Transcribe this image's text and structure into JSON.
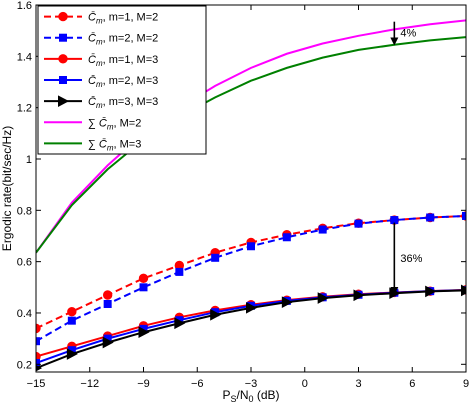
{
  "chart_data": {
    "type": "line",
    "xlabel": "P_S/N_0 (dB)",
    "xlabel_main": "P",
    "xlabel_sub": "S",
    "xlabel_rest": "/N",
    "xlabel_sub2": "0",
    "xlabel_unit": " (dB)",
    "ylabel": "Ergodic rate(bit/sec/Hz)",
    "xlim": [
      -15,
      9
    ],
    "ylim": [
      0.17,
      1.6
    ],
    "xticks": [
      -15,
      -12,
      -9,
      -6,
      -3,
      0,
      3,
      6,
      9
    ],
    "yticks": [
      0.2,
      0.4,
      0.6,
      0.8,
      1,
      1.2,
      1.4,
      1.6
    ],
    "ytick_labels": [
      "0.2",
      "0.4",
      "0.6",
      "0.8",
      "1",
      "1.2",
      "1.4",
      "1.6"
    ],
    "grid": false,
    "legend_position": "top-left",
    "x": [
      -15,
      -13,
      -11,
      -9,
      -7,
      -5,
      -3,
      -1,
      1,
      3,
      5,
      7,
      9
    ],
    "series": [
      {
        "name": "C̄m, m=1, M=2",
        "legend_sym": "C̄",
        "legend_sub": "m",
        "legend_rest": ", m=1, M=2",
        "color": "#ff0000",
        "dash": "dashed",
        "marker": "circle",
        "values": [
          0.34,
          0.405,
          0.47,
          0.535,
          0.585,
          0.635,
          0.675,
          0.705,
          0.73,
          0.75,
          0.762,
          0.772,
          0.778
        ]
      },
      {
        "name": "C̄m, m=2, M=2",
        "legend_sym": "C̄",
        "legend_sub": "m",
        "legend_rest": ", m=2, M=2",
        "color": "#0000ff",
        "dash": "dashed",
        "marker": "square",
        "values": [
          0.29,
          0.37,
          0.435,
          0.5,
          0.56,
          0.615,
          0.66,
          0.695,
          0.725,
          0.748,
          0.762,
          0.772,
          0.778
        ]
      },
      {
        "name": "C̄m, m=1, M=3",
        "legend_sym": "C̄",
        "legend_sub": "m",
        "legend_rest": ", m=1, M=3",
        "color": "#ff0000",
        "dash": "solid",
        "marker": "circle",
        "values": [
          0.23,
          0.27,
          0.31,
          0.35,
          0.383,
          0.41,
          0.432,
          0.45,
          0.463,
          0.473,
          0.48,
          0.485,
          0.49
        ]
      },
      {
        "name": "C̄m, m=2, M=3",
        "legend_sym": "C̄",
        "legend_sub": "m",
        "legend_rest": ", m=2, M=3",
        "color": "#0000ff",
        "dash": "solid",
        "marker": "square",
        "values": [
          0.205,
          0.255,
          0.3,
          0.338,
          0.372,
          0.403,
          0.428,
          0.447,
          0.461,
          0.471,
          0.479,
          0.485,
          0.489
        ]
      },
      {
        "name": "C̄m, m=3, M=3",
        "legend_sym": "C̄",
        "legend_sub": "m",
        "legend_rest": ", m=3, M=3",
        "color": "#000000",
        "dash": "solid",
        "marker": "triangle-right",
        "values": [
          0.185,
          0.24,
          0.285,
          0.325,
          0.36,
          0.393,
          0.42,
          0.442,
          0.458,
          0.469,
          0.477,
          0.484,
          0.488
        ]
      },
      {
        "name": "∑C̄m, M=2",
        "legend_sum": "∑",
        "legend_sym": "C̄",
        "legend_sub": "m",
        "legend_rest": ", M=2",
        "color": "#ff00ff",
        "dash": "solid",
        "marker": "none",
        "values": [
          0.635,
          0.83,
          0.975,
          1.1,
          1.2,
          1.285,
          1.355,
          1.41,
          1.45,
          1.48,
          1.505,
          1.525,
          1.54
        ]
      },
      {
        "name": "∑C̄m, M=3",
        "legend_sum": "∑",
        "legend_sym": "C̄",
        "legend_sub": "m",
        "legend_rest": ", M=3",
        "color": "#008000",
        "dash": "solid",
        "marker": "none",
        "values": [
          0.635,
          0.82,
          0.96,
          1.075,
          1.165,
          1.24,
          1.305,
          1.355,
          1.395,
          1.425,
          1.445,
          1.462,
          1.475
        ]
      }
    ],
    "annotations": [
      {
        "text": "4%",
        "arrow_x": 5,
        "arrow_from": 1.535,
        "arrow_to": 1.45
      },
      {
        "text": "36%",
        "arrow_x": 5,
        "arrow_from": 0.752,
        "arrow_to": 0.478
      }
    ]
  }
}
